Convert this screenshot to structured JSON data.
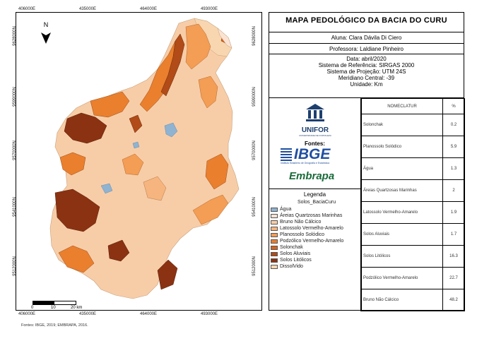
{
  "map": {
    "top_ticks": [
      "406000E",
      "435000E",
      "464000E",
      "493000E"
    ],
    "bottom_ticks": [
      "406000E",
      "435000E",
      "464000E",
      "493000E"
    ],
    "left_ticks": [
      "9628000N",
      "9599000N",
      "9570000N",
      "9541000N",
      "9512000N"
    ],
    "right_ticks": [
      "9628000N",
      "9599000N",
      "9570000N",
      "9541000N",
      "9512000N"
    ],
    "north_label": "N",
    "scale_labels": [
      "0",
      "10",
      "20 km"
    ],
    "sources": "Fontes: IBGE, 2019; EMBRAPA, 2016."
  },
  "panel": {
    "title": "MAPA PEDOLÓGICO DA BACIA DO CURU",
    "aluna": "Aluna: Clara Dávila Di Ciero",
    "professora": "Professora: Laldiane Pinheiro",
    "info_lines": [
      "Data: abril/2020",
      "Sistema de Referência: SIRGAS 2000",
      "Sistema de Projeção: UTM 24S",
      "Meridiano Central: -39",
      "Unidade: Km"
    ],
    "unifor_text": "UNIFOR",
    "unifor_subtext": "UNIVERSIDADE DE FORTALEZA",
    "fontes_label": "Fontes:",
    "ibge_text": "IBGE",
    "ibge_subtext": "Instituto Brasileiro de Geografia e Estatística",
    "embrapa_text": "Embrapa",
    "legend_title": "Legenda",
    "legend_layer": "Solos_BaciaCuru"
  },
  "legend": [
    {
      "label": "Água",
      "color": "#8fb3d1"
    },
    {
      "label": "Áreias Quartzosas Marinhas",
      "color": "#fbe3d3"
    },
    {
      "label": "Bruno Não Cálcico",
      "color": "#f7cda8"
    },
    {
      "label": "Latossolo Vermelho-Amarelo",
      "color": "#f6b57f"
    },
    {
      "label": "Planossolo Solódico",
      "color": "#f39d55"
    },
    {
      "label": "Podzólico Vermelho-Amarelo",
      "color": "#ea7f2e"
    },
    {
      "label": "Solonchak",
      "color": "#d4641d"
    },
    {
      "label": "Solos Aluviais",
      "color": "#b14b17"
    },
    {
      "label": "Solos Litólicos",
      "color": "#8a3212"
    },
    {
      "label": "DissolVido",
      "color": "#f7d6b0"
    }
  ],
  "table": {
    "header": [
      "NOMECLATUR",
      "%"
    ],
    "rows": [
      [
        "Solonchak",
        "0.2"
      ],
      [
        "Planossolo Solódico",
        "5.9"
      ],
      [
        "Água",
        "1.3"
      ],
      [
        "Áreias Quartzosas Marinhas",
        "2"
      ],
      [
        "Latossolo Vermelho-Amarelo",
        "1.9"
      ],
      [
        "Solos Aluviais",
        "1.7"
      ],
      [
        "Solos Litólicos",
        "16.3"
      ],
      [
        "Podzólico Vermelho-Amarelo",
        "22.7"
      ],
      [
        "Bruno Não Cálcico",
        "48.2"
      ]
    ]
  }
}
